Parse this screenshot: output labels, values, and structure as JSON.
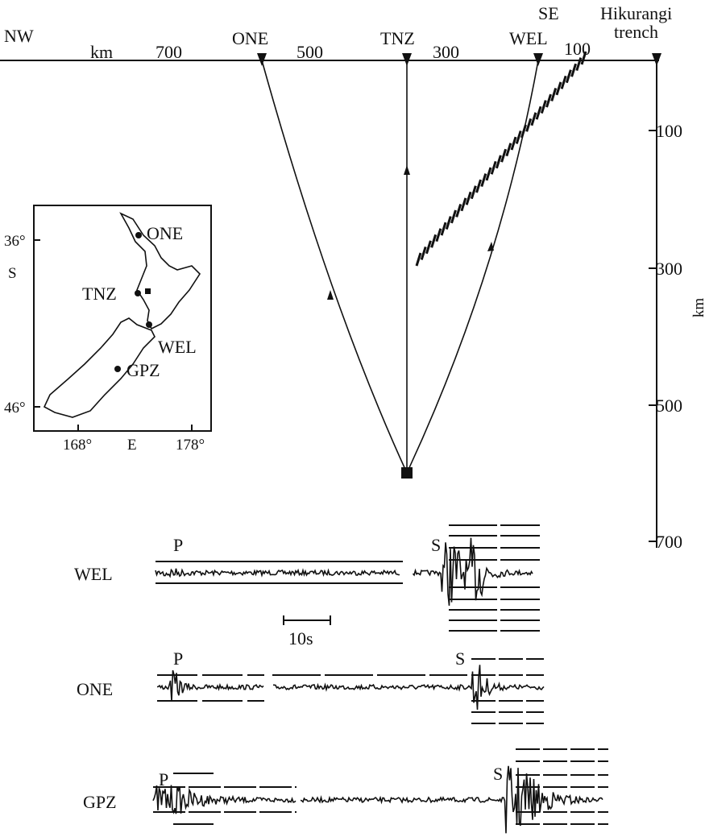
{
  "section": {
    "nw": "NW",
    "se": "SE",
    "distance_unit": "km",
    "distance_labels": [
      "700",
      "500",
      "300",
      "100"
    ],
    "stations": [
      "ONE",
      "TNZ",
      "WEL"
    ],
    "trench": [
      "Hikurangi",
      "trench"
    ],
    "depth_labels": [
      "100",
      "300",
      "500",
      "700"
    ],
    "depth_unit": "km"
  },
  "map": {
    "lat_labels": [
      "36°",
      "46°"
    ],
    "lat_hemisphere": "S",
    "lon_labels": [
      "168°",
      "178°"
    ],
    "lon_hemisphere": "E",
    "stations": [
      "ONE",
      "TNZ",
      "WEL",
      "GPZ"
    ]
  },
  "seismograms": [
    {
      "station": "WEL",
      "p": "P",
      "s": "S"
    },
    {
      "station": "ONE",
      "p": "P",
      "s": "S"
    },
    {
      "station": "GPZ",
      "p": "P",
      "s": "S"
    }
  ],
  "scale_label": "10s"
}
